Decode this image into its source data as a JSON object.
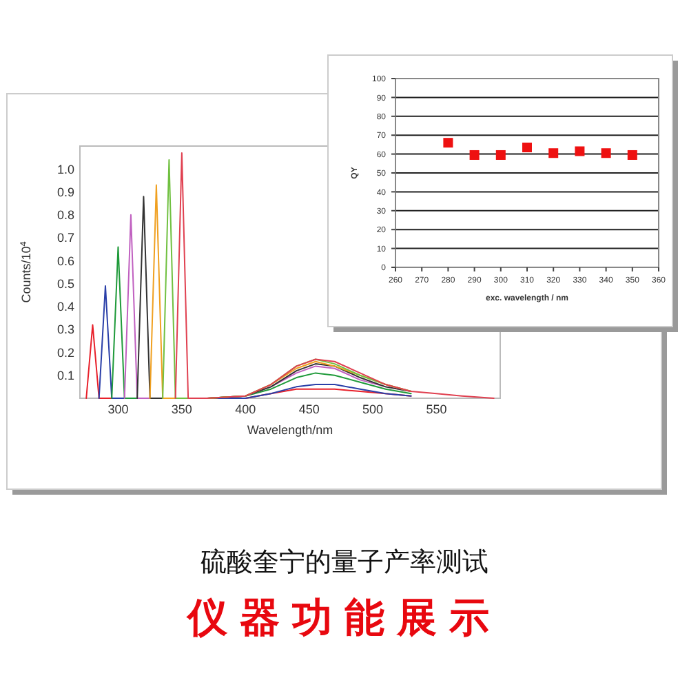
{
  "chart_data": [
    {
      "type": "line",
      "xlabel": "Wavelength/nm",
      "ylabel": "Counts/10$^{4}$",
      "xlim": [
        270,
        600
      ],
      "ylim": [
        0,
        1.1
      ],
      "xticks": [
        300,
        350,
        400,
        450,
        500,
        550
      ],
      "yticks": [
        0.1,
        0.2,
        0.3,
        0.4,
        0.5,
        0.6,
        0.7,
        0.8,
        0.9,
        {
          "value": 1,
          "label": "1.0"
        }
      ],
      "grid": false,
      "annotations": [
        "硫酸奎宁的量子产率测试",
        "仪器功能展示"
      ],
      "series": [
        {
          "color": "#e8202a",
          "x": [
            275,
            280,
            285,
            370,
            400,
            420,
            440,
            455,
            470,
            490,
            510,
            530
          ],
          "values": [
            0,
            0.32,
            0,
            0,
            0,
            0.02,
            0.04,
            0.04,
            0.04,
            0.03,
            0.02,
            0.01
          ]
        },
        {
          "color": "#2a3fa8",
          "x": [
            285,
            290,
            295,
            370,
            400,
            420,
            440,
            455,
            470,
            490,
            510,
            530
          ],
          "values": [
            0,
            0.49,
            0,
            0,
            0,
            0.02,
            0.05,
            0.06,
            0.06,
            0.04,
            0.02,
            0.01
          ]
        },
        {
          "color": "#1f9a3a",
          "x": [
            295,
            300,
            305,
            370,
            400,
            420,
            440,
            455,
            470,
            490,
            510,
            530
          ],
          "values": [
            0,
            0.66,
            0,
            0,
            0.01,
            0.04,
            0.09,
            0.11,
            0.1,
            0.07,
            0.04,
            0.02
          ]
        },
        {
          "color": "#c060c0",
          "x": [
            305,
            310,
            315,
            370,
            400,
            420,
            440,
            455,
            470,
            490,
            510,
            530
          ],
          "values": [
            0,
            0.8,
            0,
            0,
            0.01,
            0.05,
            0.11,
            0.14,
            0.13,
            0.08,
            0.05,
            0.03
          ]
        },
        {
          "color": "#333333",
          "x": [
            315,
            320,
            325,
            370,
            400,
            420,
            440,
            455,
            470,
            490,
            510,
            530
          ],
          "values": [
            0,
            0.88,
            0,
            0,
            0.01,
            0.05,
            0.12,
            0.15,
            0.14,
            0.09,
            0.05,
            0.03
          ]
        },
        {
          "color": "#f0a020",
          "x": [
            325,
            330,
            335,
            370,
            400,
            420,
            440,
            455,
            470,
            490,
            510,
            530
          ],
          "values": [
            0,
            0.93,
            0,
            0,
            0.01,
            0.06,
            0.13,
            0.16,
            0.14,
            0.1,
            0.06,
            0.03
          ]
        },
        {
          "color": "#70c040",
          "x": [
            335,
            340,
            345,
            370,
            400,
            420,
            440,
            455,
            470,
            490,
            510,
            530
          ],
          "values": [
            0,
            1.04,
            0,
            0,
            0.01,
            0.06,
            0.14,
            0.17,
            0.15,
            0.1,
            0.06,
            0.03
          ]
        },
        {
          "color": "#e04050",
          "x": [
            345,
            350,
            355,
            370,
            400,
            420,
            440,
            455,
            470,
            490,
            510,
            530,
            550,
            570,
            595
          ],
          "values": [
            0,
            1.07,
            0,
            0,
            0.01,
            0.06,
            0.14,
            0.17,
            0.16,
            0.11,
            0.06,
            0.03,
            0.02,
            0.01,
            0
          ]
        }
      ]
    },
    {
      "type": "scatter",
      "xlabel": "exc. wavelength / nm",
      "ylabel": "QY",
      "xlim": [
        260,
        360
      ],
      "ylim": [
        0,
        100
      ],
      "xticks": [
        260,
        270,
        280,
        290,
        300,
        310,
        320,
        330,
        340,
        350,
        360
      ],
      "yticks": [
        0,
        10,
        20,
        30,
        40,
        50,
        60,
        70,
        80,
        90,
        100
      ],
      "grid": "y",
      "marker": "square",
      "series": [
        {
          "color": "#ee1111",
          "x": [
            280,
            290,
            300,
            310,
            320,
            330,
            340,
            350
          ],
          "values": [
            66,
            59.5,
            59.5,
            63.5,
            60.5,
            61.5,
            60.5,
            59.5
          ]
        }
      ]
    }
  ]
}
